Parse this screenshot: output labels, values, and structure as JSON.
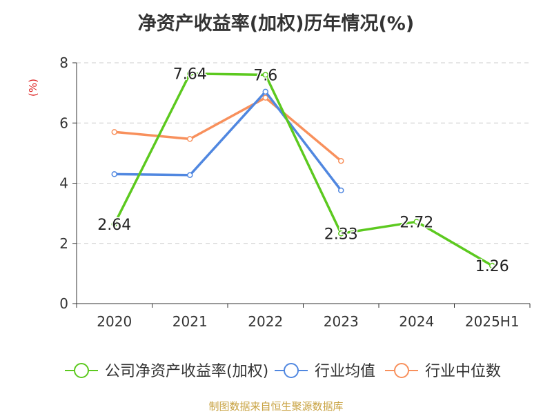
{
  "chart_data": {
    "type": "line",
    "title": "净资产收益率(加权)历年情况(%)",
    "ylabel": "(%)",
    "xlabel": "",
    "categories": [
      "2020",
      "2021",
      "2022",
      "2023",
      "2024",
      "2025H1"
    ],
    "ylim": [
      0,
      8
    ],
    "yticks": [
      0,
      2,
      4,
      6,
      8
    ],
    "grid": true,
    "legend_position": "bottom",
    "series": [
      {
        "name": "公司净资产收益率(加权)",
        "color": "#5cc91f",
        "values": [
          2.64,
          7.64,
          7.6,
          2.33,
          2.72,
          1.26
        ],
        "labels": [
          "2.64",
          "7.64",
          "7.6",
          "2.33",
          "2.72",
          "1.26"
        ]
      },
      {
        "name": "行业均值",
        "color": "#5087e0",
        "values": [
          4.3,
          4.27,
          7.04,
          3.76,
          null,
          null
        ]
      },
      {
        "name": "行业中位数",
        "color": "#f8905c",
        "values": [
          5.7,
          5.47,
          6.84,
          4.74,
          null,
          null
        ]
      }
    ]
  },
  "source": "制图数据来自恒生聚源数据库"
}
